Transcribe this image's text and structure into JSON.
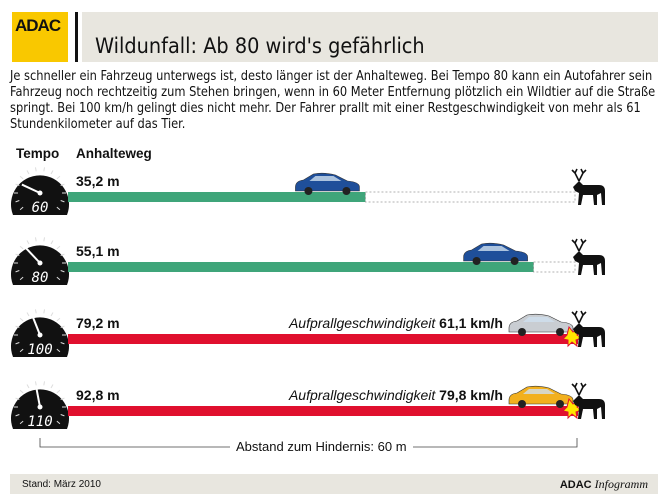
{
  "header": {
    "logo": "ADAC",
    "title": "Wildunfall: Ab 80 wird's gefährlich"
  },
  "intro": "Je schneller ein Fahrzeug unterwegs ist, desto länger ist der Anhalteweg. Bei Tempo 80 kann ein Autofahrer sein Fahrzeug noch rechtzeitig zum Stehen bringen, wenn in 60 Meter Entfernung plötzlich ein Wildtier auf die Straße springt. Bei 100 km/h gelingt dies nicht mehr. Der Fahrer prallt mit einer Restgeschwindigkeit von mehr als 61 Stundenkilometer auf das Tier.",
  "chart_data": {
    "type": "bar",
    "orientation": "horizontal",
    "column_headers": [
      "Tempo",
      "Anhalteweg"
    ],
    "categories": [
      "60",
      "80",
      "100",
      "110"
    ],
    "values": [
      35.2,
      55.1,
      79.2,
      92.8
    ],
    "value_labels": [
      "35,2 m",
      "55,1 m",
      "79,2 m",
      "92,8 m"
    ],
    "unit": "m",
    "obstacle_distance": 60,
    "obstacle_label": "Abstand zum Hindernis: 60 m",
    "impact_labels": [
      null,
      null,
      {
        "text": "Aufprallgeschwindigkeit",
        "value": "61,1 km/h"
      },
      {
        "text": "Aufprallgeschwindigkeit",
        "value": "79,8 km/h"
      }
    ],
    "colors": {
      "safe": "#3fa57a",
      "collision": "#e0102e",
      "car": [
        "#1f4f9a",
        "#1f4f9a",
        "#c9cdd2",
        "#f2b01e"
      ]
    }
  },
  "footer": {
    "stand": "Stand: März 2010",
    "brand": "ADAC",
    "brand_italic": "Infogramm"
  }
}
